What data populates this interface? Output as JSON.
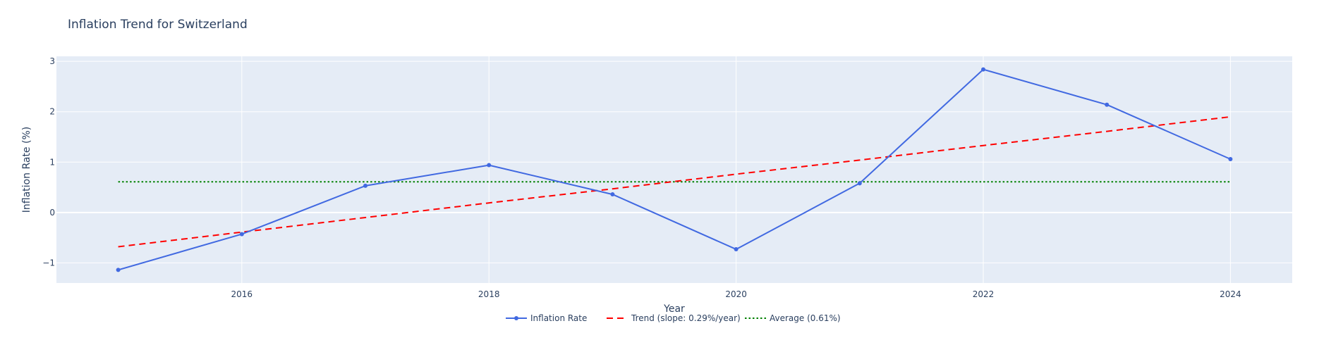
{
  "chart_data": {
    "type": "line",
    "title": "Inflation Trend for Switzerland",
    "xlabel": "Year",
    "ylabel": "Inflation Rate (%)",
    "x": [
      2015,
      2016,
      2017,
      2018,
      2019,
      2020,
      2021,
      2022,
      2023,
      2024
    ],
    "xlim": [
      2014.5,
      2024.5
    ],
    "ylim": [
      -1.4,
      3.1
    ],
    "x_ticks": [
      2016,
      2018,
      2020,
      2022,
      2024
    ],
    "y_ticks": [
      -1,
      0,
      1,
      2,
      3
    ],
    "y_tick_labels": [
      "−1",
      "0",
      "1",
      "2",
      "3"
    ],
    "grid": true,
    "legend_position": "bottom-center",
    "series": [
      {
        "name": "Inflation Rate",
        "style": "lines+markers",
        "color": "#4169e1",
        "values": [
          -1.14,
          -0.43,
          0.53,
          0.94,
          0.36,
          -0.73,
          0.58,
          2.84,
          2.14,
          1.06
        ]
      },
      {
        "name": "Trend (slope: 0.29%/year)",
        "style": "dash",
        "color": "#ff0000",
        "values": [
          -0.68,
          -0.39,
          -0.1,
          0.19,
          0.47,
          0.76,
          1.04,
          1.33,
          1.61,
          1.9
        ]
      },
      {
        "name": "Average (0.61%)",
        "style": "dot",
        "color": "#008000",
        "values": [
          0.61,
          0.61,
          0.61,
          0.61,
          0.61,
          0.61,
          0.61,
          0.61,
          0.61,
          0.61
        ]
      }
    ],
    "colors": {
      "plot_background": "#e5ecf6",
      "grid": "#ffffff",
      "text": "#2a3f5f"
    }
  }
}
